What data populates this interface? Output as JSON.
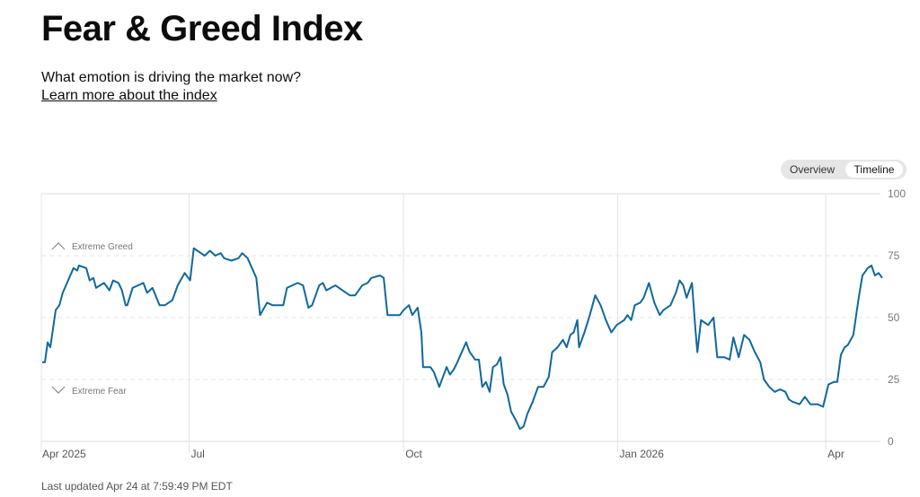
{
  "header": {
    "title": "Fear & Greed Index",
    "subtitle": "What emotion is driving the market now?",
    "learn_more": "Learn more about the index"
  },
  "toggle": {
    "overview": "Overview",
    "timeline": "Timeline",
    "active": "Timeline"
  },
  "footer": {
    "last_updated": "Last updated Apr 24 at 7:59:49 PM EDT"
  },
  "colors": {
    "line": "#10689c",
    "grid": "#e4e4e4",
    "axis_text": "#777777"
  },
  "chart_data": {
    "type": "line",
    "title": "Fear & Greed Index",
    "xlabel": "",
    "ylabel": "",
    "ylim": [
      0,
      100
    ],
    "xlim": [
      0,
      249.9
    ],
    "x_unit": "trading days since start (approx. Apr 25 2025)",
    "yticks": [
      {
        "value": 0,
        "label": "0"
      },
      {
        "value": 25,
        "label": "25"
      },
      {
        "value": 50,
        "label": "50"
      },
      {
        "value": 75,
        "label": "75"
      },
      {
        "value": 100,
        "label": "100"
      }
    ],
    "xticks": [
      {
        "value": 0,
        "label": "Apr 2025"
      },
      {
        "value": 43.7,
        "label": "Jul"
      },
      {
        "value": 107.5,
        "label": "Oct"
      },
      {
        "value": 171.2,
        "label": "Jan 2026"
      },
      {
        "value": 233.1,
        "label": "Apr"
      }
    ],
    "annotations": [
      {
        "value": 75,
        "label": "Extreme Greed",
        "direction": "up"
      },
      {
        "value": 25,
        "label": "Extreme Fear",
        "direction": "down"
      }
    ],
    "grid": true,
    "series": [
      {
        "name": "Fear & Greed Index",
        "points": [
          [
            0,
            32
          ],
          [
            0.8,
            32
          ],
          [
            1.6,
            40
          ],
          [
            2.4,
            38
          ],
          [
            4.0,
            53
          ],
          [
            5.1,
            55
          ],
          [
            6.1,
            60
          ],
          [
            7.7,
            65
          ],
          [
            9.3,
            70
          ],
          [
            10.4,
            69
          ],
          [
            10.9,
            71
          ],
          [
            13.1,
            70
          ],
          [
            14.1,
            65
          ],
          [
            15.2,
            66
          ],
          [
            16.0,
            62
          ],
          [
            18.4,
            64
          ],
          [
            20.0,
            61
          ],
          [
            21.1,
            65
          ],
          [
            22.7,
            64
          ],
          [
            23.7,
            61
          ],
          [
            24.8,
            55
          ],
          [
            25.3,
            55
          ],
          [
            26.9,
            62
          ],
          [
            30.1,
            64
          ],
          [
            31.2,
            60
          ],
          [
            32.8,
            62
          ],
          [
            34.9,
            55
          ],
          [
            36.5,
            55
          ],
          [
            38.7,
            57
          ],
          [
            40.3,
            63
          ],
          [
            42.4,
            68
          ],
          [
            44.0,
            65
          ],
          [
            45.1,
            78
          ],
          [
            48.3,
            75
          ],
          [
            49.9,
            77
          ],
          [
            51.5,
            75
          ],
          [
            53.1,
            76
          ],
          [
            54.1,
            74
          ],
          [
            56.3,
            73
          ],
          [
            58.4,
            74
          ],
          [
            59.5,
            76
          ],
          [
            61.1,
            74
          ],
          [
            63.7,
            66
          ],
          [
            64.8,
            51
          ],
          [
            66.9,
            56
          ],
          [
            68.5,
            55
          ],
          [
            71.7,
            55
          ],
          [
            72.8,
            62
          ],
          [
            76.0,
            64
          ],
          [
            77.6,
            63
          ],
          [
            79.2,
            54
          ],
          [
            80.3,
            55
          ],
          [
            82.4,
            63
          ],
          [
            83.5,
            64
          ],
          [
            84.5,
            61
          ],
          [
            87.2,
            63
          ],
          [
            89.3,
            61
          ],
          [
            91.5,
            59
          ],
          [
            93.1,
            59
          ],
          [
            95.2,
            63
          ],
          [
            96.8,
            64
          ],
          [
            97.9,
            66
          ],
          [
            100.5,
            67
          ],
          [
            101.6,
            66
          ],
          [
            102.7,
            51
          ],
          [
            105.3,
            51
          ],
          [
            106.4,
            51
          ],
          [
            107.5,
            53
          ],
          [
            109.1,
            55
          ],
          [
            110.1,
            51
          ],
          [
            111.7,
            54
          ],
          [
            112.8,
            44
          ],
          [
            113.3,
            30
          ],
          [
            115.5,
            30
          ],
          [
            116.5,
            28
          ],
          [
            117.6,
            24
          ],
          [
            118.1,
            22
          ],
          [
            119.2,
            26
          ],
          [
            120.3,
            30
          ],
          [
            121.3,
            27
          ],
          [
            122.4,
            29
          ],
          [
            123.5,
            32
          ],
          [
            126.1,
            40
          ],
          [
            127.2,
            36
          ],
          [
            128.8,
            33
          ],
          [
            129.9,
            33
          ],
          [
            130.9,
            22
          ],
          [
            132.0,
            24
          ],
          [
            133.1,
            20
          ],
          [
            134.1,
            30
          ],
          [
            135.2,
            31
          ],
          [
            136.3,
            34
          ],
          [
            137.3,
            23
          ],
          [
            138.4,
            19
          ],
          [
            139.5,
            12
          ],
          [
            141.1,
            8
          ],
          [
            142.1,
            5
          ],
          [
            143.2,
            6
          ],
          [
            144.3,
            11
          ],
          [
            145.9,
            16
          ],
          [
            147.5,
            22
          ],
          [
            149.1,
            22
          ],
          [
            150.7,
            26
          ],
          [
            151.7,
            36
          ],
          [
            153.3,
            38
          ],
          [
            154.9,
            41
          ],
          [
            156.0,
            38
          ],
          [
            157.1,
            43
          ],
          [
            158.1,
            44
          ],
          [
            159.2,
            49
          ],
          [
            159.7,
            38
          ],
          [
            161.3,
            44
          ],
          [
            162.9,
            51
          ],
          [
            164.5,
            59
          ],
          [
            166.1,
            55
          ],
          [
            167.7,
            49
          ],
          [
            169.3,
            44
          ],
          [
            170.9,
            47
          ],
          [
            173.1,
            49
          ],
          [
            174.1,
            51
          ],
          [
            175.2,
            49
          ],
          [
            176.3,
            55
          ],
          [
            177.9,
            56
          ],
          [
            178.9,
            58
          ],
          [
            180.5,
            64
          ],
          [
            182.1,
            56
          ],
          [
            183.7,
            51
          ],
          [
            184.8,
            53
          ],
          [
            186.9,
            55
          ],
          [
            188.5,
            60
          ],
          [
            189.6,
            65
          ],
          [
            190.7,
            63
          ],
          [
            191.7,
            58
          ],
          [
            193.3,
            64
          ],
          [
            194.4,
            44
          ],
          [
            194.9,
            36
          ],
          [
            196.0,
            49
          ],
          [
            198.1,
            47
          ],
          [
            199.7,
            50
          ],
          [
            200.8,
            34
          ],
          [
            202.9,
            34
          ],
          [
            204.5,
            33
          ],
          [
            205.6,
            42
          ],
          [
            207.2,
            34
          ],
          [
            208.8,
            43
          ],
          [
            210.4,
            41
          ],
          [
            212.0,
            36
          ],
          [
            213.6,
            32
          ],
          [
            214.7,
            25
          ],
          [
            216.3,
            22
          ],
          [
            217.9,
            20
          ],
          [
            219.5,
            21
          ],
          [
            221.1,
            20
          ],
          [
            222.1,
            17
          ],
          [
            223.2,
            16
          ],
          [
            225.3,
            15
          ],
          [
            226.9,
            18
          ],
          [
            228.5,
            15
          ],
          [
            230.7,
            15
          ],
          [
            232.3,
            14
          ],
          [
            233.9,
            23
          ],
          [
            235.5,
            24
          ],
          [
            236.5,
            24
          ],
          [
            237.6,
            35
          ],
          [
            238.7,
            38
          ],
          [
            239.7,
            39
          ],
          [
            241.3,
            43
          ],
          [
            242.9,
            58
          ],
          [
            244.0,
            67
          ],
          [
            245.6,
            70
          ],
          [
            246.7,
            71
          ],
          [
            247.7,
            67
          ],
          [
            248.8,
            68
          ],
          [
            249.9,
            66
          ]
        ]
      }
    ]
  }
}
